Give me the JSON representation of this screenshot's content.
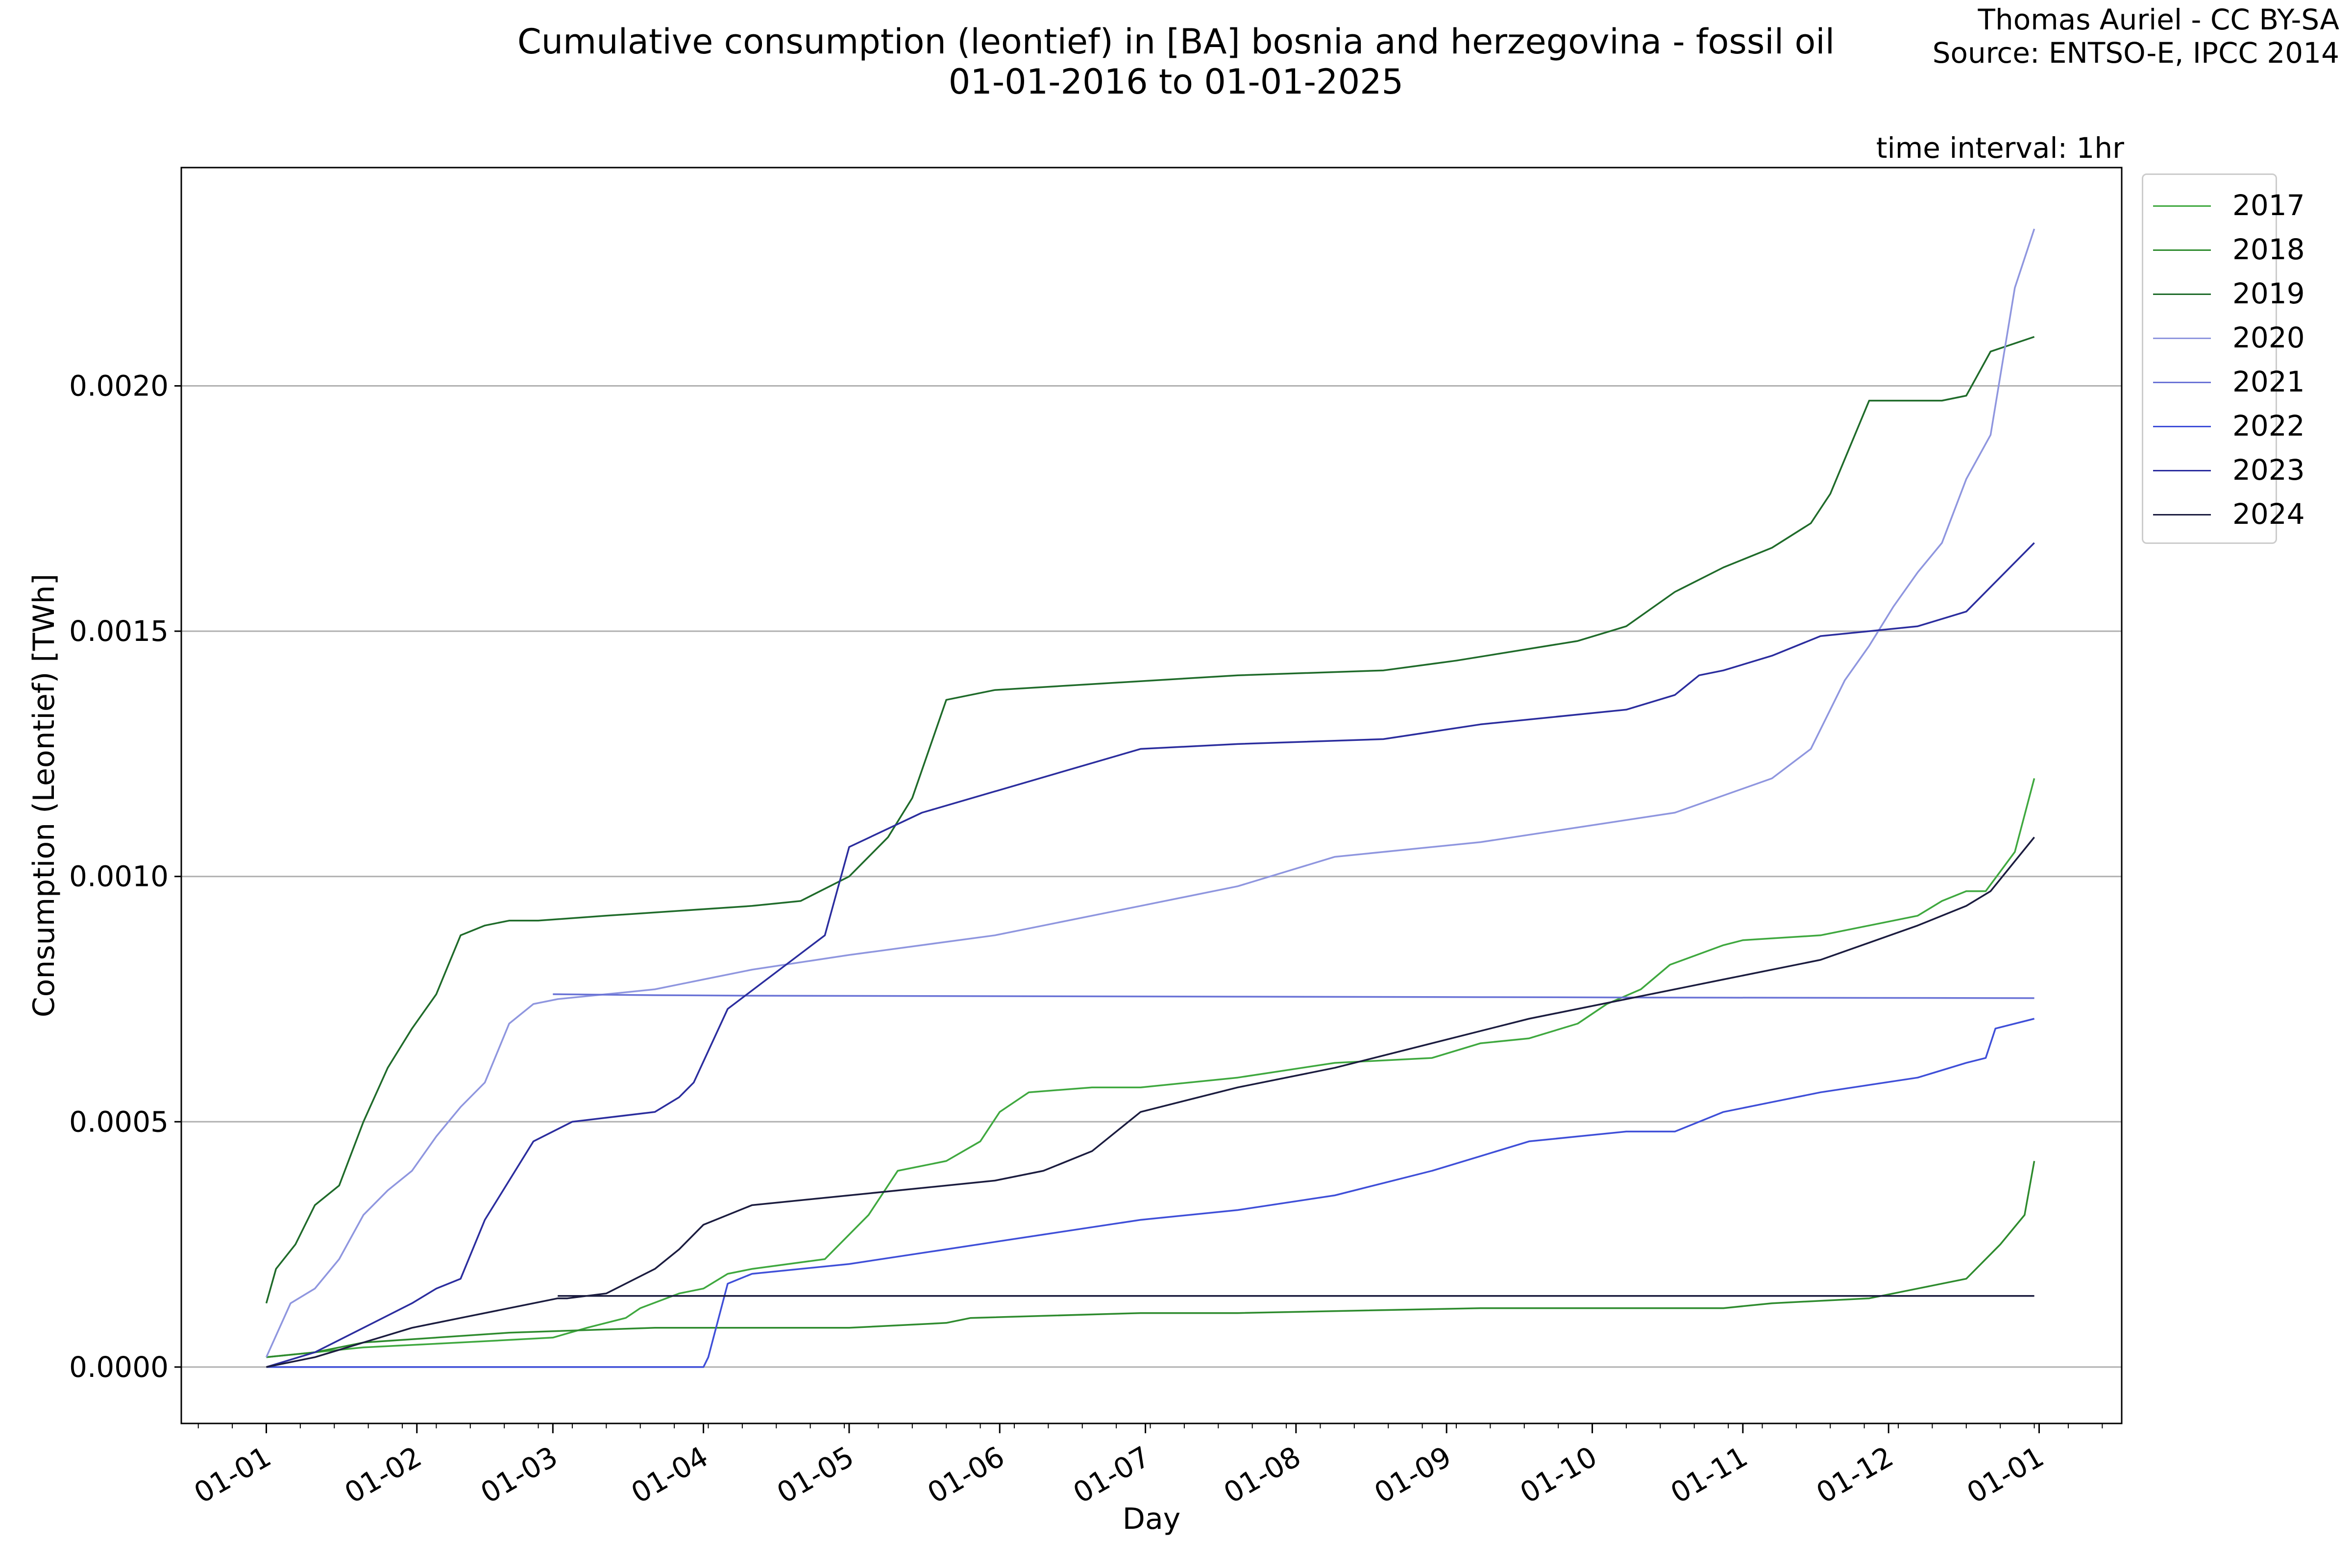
{
  "header": {
    "title_line1": "Cumulative consumption (leontief) in [BA] bosnia and herzegovina - fossil oil",
    "title_line2": "01-01-2016 to 01-01-2025",
    "credit_line1": "Thomas Auriel - CC BY-SA",
    "credit_line2": "Source: ENTSO-E, IPCC 2014",
    "interval": "time interval: 1hr"
  },
  "chart_data": {
    "type": "line",
    "title": "Cumulative consumption (leontief) in [BA] bosnia and herzegovina - fossil oil",
    "subtitle": "01-01-2016 to 01-01-2025",
    "xlabel": "Day",
    "ylabel": "Consumption (Leontief) [TWh]",
    "x_ticks": [
      "01-01",
      "01-02",
      "01-03",
      "01-04",
      "01-05",
      "01-06",
      "01-07",
      "01-08",
      "01-09",
      "01-10",
      "01-11",
      "01-12",
      "01-01"
    ],
    "y_ticks": [
      "0.0000",
      "0.0005",
      "0.0010",
      "0.0015",
      "0.0020"
    ],
    "ylim": [
      -0.000115,
      0.002445
    ],
    "xlim_day": [
      -17.5,
      382
    ],
    "grid": "horizontal",
    "legend_position": "outside-right",
    "series": [
      {
        "name": "2017",
        "color": "#3fa83f",
        "x": [
          0,
          10,
          20,
          40,
          59,
          66,
          74,
          77,
          85,
          90,
          95,
          100,
          115,
          119,
          124,
          130,
          140,
          147,
          151,
          157,
          170,
          180,
          200,
          220,
          240,
          250,
          260,
          270,
          276,
          283,
          289,
          300,
          304,
          320,
          330,
          340,
          345,
          350,
          354,
          360,
          364
        ],
        "y": [
          2e-05,
          3e-05,
          4e-05,
          5e-05,
          6e-05,
          8e-05,
          0.0001,
          0.00012,
          0.00015,
          0.00016,
          0.00019,
          0.0002,
          0.00022,
          0.00026,
          0.00031,
          0.0004,
          0.00042,
          0.00046,
          0.00052,
          0.00056,
          0.00057,
          0.00057,
          0.00059,
          0.00062,
          0.00063,
          0.00066,
          0.00067,
          0.0007,
          0.00074,
          0.00077,
          0.00082,
          0.00086,
          0.00087,
          0.00088,
          0.0009,
          0.00092,
          0.00095,
          0.00097,
          0.00097,
          0.00105,
          0.0012
        ]
      },
      {
        "name": "2018",
        "color": "#2e8b2e",
        "x": [
          0,
          10,
          20,
          50,
          80,
          100,
          118,
          120,
          140,
          145,
          180,
          200,
          250,
          300,
          310,
          330,
          340,
          345,
          350,
          357,
          362,
          364
        ],
        "y": [
          2e-05,
          3e-05,
          5e-05,
          7e-05,
          8e-05,
          8e-05,
          8e-05,
          8e-05,
          9e-05,
          0.0001,
          0.00011,
          0.00011,
          0.00012,
          0.00012,
          0.00013,
          0.00014,
          0.00016,
          0.00017,
          0.00018,
          0.00025,
          0.00031,
          0.00042
        ]
      },
      {
        "name": "2019",
        "color": "#1f6b2a",
        "x": [
          0,
          2,
          6,
          10,
          15,
          20,
          25,
          30,
          35,
          40,
          45,
          50,
          56,
          70,
          100,
          110,
          120,
          128,
          133,
          140,
          150,
          200,
          230,
          245,
          270,
          280,
          290,
          300,
          310,
          318,
          322,
          330,
          345,
          350,
          355,
          364
        ],
        "y": [
          0.00013,
          0.0002,
          0.00025,
          0.00033,
          0.00037,
          0.0005,
          0.00061,
          0.00069,
          0.00076,
          0.00088,
          0.0009,
          0.00091,
          0.00091,
          0.00092,
          0.00094,
          0.00095,
          0.001,
          0.00108,
          0.00116,
          0.00136,
          0.00138,
          0.00141,
          0.00142,
          0.00144,
          0.00148,
          0.00151,
          0.00158,
          0.00163,
          0.00167,
          0.00172,
          0.00178,
          0.00197,
          0.00197,
          0.00198,
          0.00207,
          0.0021
        ]
      },
      {
        "name": "2020",
        "color": "#8f96df",
        "x": [
          0,
          5,
          10,
          15,
          20,
          25,
          30,
          35,
          40,
          45,
          50,
          55,
          60,
          70,
          80,
          90,
          100,
          120,
          150,
          180,
          200,
          220,
          250,
          270,
          290,
          310,
          318,
          325,
          330,
          335,
          340,
          345,
          350,
          355,
          360,
          364
        ],
        "y": [
          2e-05,
          0.00013,
          0.00016,
          0.00022,
          0.00031,
          0.00036,
          0.0004,
          0.00047,
          0.00053,
          0.00058,
          0.0007,
          0.00074,
          0.00075,
          0.00076,
          0.00077,
          0.00079,
          0.00081,
          0.00084,
          0.00088,
          0.00094,
          0.00098,
          0.00104,
          0.00107,
          0.0011,
          0.00113,
          0.0012,
          0.00126,
          0.0014,
          0.00147,
          0.00155,
          0.00162,
          0.00168,
          0.00181,
          0.0019,
          0.0022,
          0.00232
        ]
      },
      {
        "name": "2021",
        "color": "#6a73d6",
        "x": [
          59,
          80,
          100,
          150,
          200,
          250,
          300,
          364
        ],
        "y": [
          0.00076,
          0.000758,
          0.000757,
          0.000756,
          0.000755,
          0.000754,
          0.000753,
          0.000752
        ]
      },
      {
        "name": "2022",
        "color": "#3f4fd8",
        "x": [
          0,
          30,
          60,
          77,
          90,
          91,
          95,
          100,
          120,
          140,
          160,
          180,
          200,
          220,
          240,
          250,
          260,
          270,
          280,
          290,
          300,
          310,
          320,
          340,
          350,
          354,
          356,
          364
        ],
        "y": [
          0.0,
          0.0,
          0.0,
          0.0,
          0.0,
          2e-05,
          0.00017,
          0.00019,
          0.00021,
          0.00024,
          0.00027,
          0.0003,
          0.00032,
          0.00035,
          0.0004,
          0.00043,
          0.00046,
          0.00047,
          0.00048,
          0.00048,
          0.00052,
          0.00054,
          0.00056,
          0.00059,
          0.00062,
          0.00063,
          0.00069,
          0.00071
        ]
      },
      {
        "name": "2023",
        "color": "#2b2d9e",
        "x": [
          0,
          10,
          20,
          30,
          35,
          40,
          45,
          55,
          63,
          80,
          85,
          88,
          95,
          115,
          120,
          135,
          180,
          200,
          230,
          250,
          280,
          290,
          295,
          300,
          310,
          320,
          330,
          340,
          350,
          355,
          364
        ],
        "y": [
          0.0,
          3e-05,
          8e-05,
          0.00013,
          0.00016,
          0.00018,
          0.0003,
          0.00046,
          0.0005,
          0.00052,
          0.00055,
          0.00058,
          0.00073,
          0.00088,
          0.00106,
          0.00113,
          0.00126,
          0.00127,
          0.00128,
          0.00131,
          0.00134,
          0.00137,
          0.00141,
          0.00142,
          0.00145,
          0.00149,
          0.0015,
          0.00151,
          0.00154,
          0.00159,
          0.00168
        ]
      },
      {
        "name": "2024",
        "color": "#1b1c3f",
        "x": [
          0,
          10,
          20,
          30,
          40,
          50,
          60,
          62,
          70,
          80,
          85,
          90,
          100,
          120,
          150,
          160,
          170,
          180,
          200,
          220,
          260,
          270,
          280,
          300,
          320,
          340,
          350,
          355,
          364
        ],
        "y": [
          0.0,
          2e-05,
          5e-05,
          8e-05,
          0.0001,
          0.00012,
          0.00014,
          0.00014,
          0.00015,
          0.0002,
          0.00024,
          0.00029,
          0.00033,
          0.00035,
          0.00038,
          0.0004,
          0.00044,
          0.00052,
          0.00057,
          0.00061,
          0.00071,
          0.00073,
          0.00075,
          0.00079,
          0.00083,
          0.0009,
          0.00094,
          0.00097,
          0.00108
        ]
      },
      {
        "name": "",
        "color": "#1b1c3f",
        "x": [
          60,
          100,
          200,
          300,
          364
        ],
        "y": [
          0.000145,
          0.000145,
          0.000145,
          0.000145,
          0.000145
        ]
      }
    ]
  }
}
